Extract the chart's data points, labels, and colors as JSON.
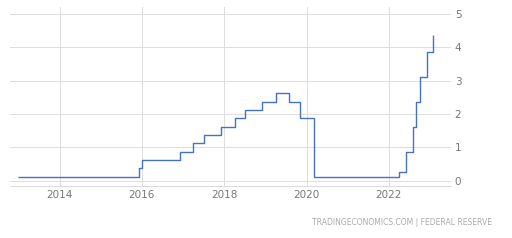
{
  "watermark": "TRADINGECONOMICS.COM | FEDERAL RESERVE",
  "line_color": "#4472C4",
  "background_color": "#ffffff",
  "grid_color": "#dddddd",
  "x_ticks": [
    2014,
    2016,
    2018,
    2020,
    2022
  ],
  "y_ticks": [
    0,
    1,
    2,
    3,
    4,
    5
  ],
  "xlim": [
    2012.8,
    2023.5
  ],
  "ylim": [
    -0.15,
    5.2
  ],
  "dates": [
    2013.0,
    2015.92,
    2015.92,
    2016.0,
    2016.0,
    2016.92,
    2016.92,
    2017.25,
    2017.25,
    2017.5,
    2017.5,
    2017.92,
    2017.92,
    2018.25,
    2018.25,
    2018.5,
    2018.5,
    2018.92,
    2018.92,
    2019.25,
    2019.25,
    2019.58,
    2019.58,
    2019.83,
    2019.83,
    2020.17,
    2020.17,
    2022.25,
    2022.25,
    2022.42,
    2022.42,
    2022.58,
    2022.58,
    2022.67,
    2022.67,
    2022.75,
    2022.75,
    2022.92,
    2022.92,
    2023.08,
    2023.08
  ],
  "values": [
    0.12,
    0.12,
    0.37,
    0.37,
    0.62,
    0.62,
    0.87,
    0.87,
    1.12,
    1.12,
    1.37,
    1.37,
    1.62,
    1.62,
    1.87,
    1.87,
    2.12,
    2.12,
    2.37,
    2.37,
    2.62,
    2.62,
    2.37,
    2.37,
    1.87,
    1.87,
    0.12,
    0.12,
    0.25,
    0.25,
    0.87,
    0.87,
    1.62,
    1.62,
    2.37,
    2.37,
    3.12,
    3.12,
    3.87,
    3.87,
    4.37
  ]
}
